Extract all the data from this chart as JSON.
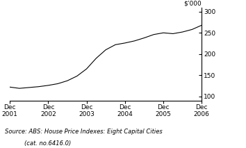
{
  "ylabel": "$’000",
  "source_line1": "Source: ABS: House Price Indexes: Eight Capital Cities",
  "source_line2": "(cat. no.6416.0)",
  "xlim": [
    0,
    20
  ],
  "ylim": [
    90,
    310
  ],
  "yticks": [
    100,
    150,
    200,
    250,
    300
  ],
  "xtick_positions": [
    0,
    4,
    8,
    12,
    16,
    20
  ],
  "xtick_labels": [
    "Dec\n2001",
    "Dec\n2002",
    "Dec\n2003",
    "Dec\n2004",
    "Dec\n2005",
    "Dec\n2006"
  ],
  "x": [
    0,
    1,
    2,
    3,
    4,
    5,
    6,
    7,
    8,
    9,
    10,
    11,
    12,
    13,
    14,
    15,
    16,
    17,
    18,
    19,
    20
  ],
  "y": [
    122,
    119,
    121,
    123,
    126,
    130,
    137,
    148,
    165,
    190,
    210,
    222,
    226,
    231,
    238,
    246,
    250,
    248,
    252,
    258,
    268
  ],
  "line_color": "#000000",
  "line_width": 0.8,
  "background_color": "#ffffff",
  "axis_fontsize": 6.5,
  "source_fontsize": 6.0
}
